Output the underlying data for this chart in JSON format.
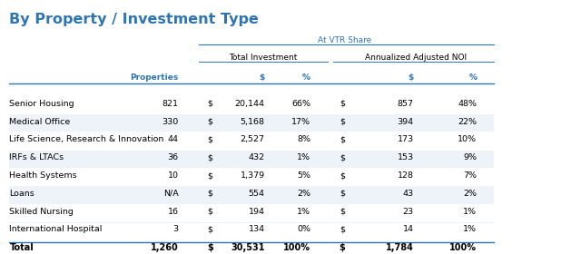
{
  "title": "By Property / Investment Type",
  "title_color": "#2E75B6",
  "at_vtr_label": "At VTR Share",
  "col_group1": "Total Investment",
  "col_group2": "Annualized Adjusted NOI",
  "header_row": [
    "Properties",
    "$",
    "%",
    "$",
    "%"
  ],
  "rows": [
    [
      "Senior Housing",
      "821",
      "$",
      "20,144",
      "66%",
      "$",
      "857",
      "48%"
    ],
    [
      "Medical Office",
      "330",
      "$",
      "5,168",
      "17%",
      "$",
      "394",
      "22%"
    ],
    [
      "Life Science, Research & Innovation",
      "44",
      "$",
      "2,527",
      "8%",
      "$",
      "173",
      "10%"
    ],
    [
      "IRFs & LTACs",
      "36",
      "$",
      "432",
      "1%",
      "$",
      "153",
      "9%"
    ],
    [
      "Health Systems",
      "10",
      "$",
      "1,379",
      "5%",
      "$",
      "128",
      "7%"
    ],
    [
      "Loans",
      "N/A",
      "$",
      "554",
      "2%",
      "$",
      "43",
      "2%"
    ],
    [
      "Skilled Nursing",
      "16",
      "$",
      "194",
      "1%",
      "$",
      "23",
      "1%"
    ],
    [
      "International Hospital",
      "3",
      "$",
      "134",
      "0%",
      "$",
      "14",
      "1%"
    ]
  ],
  "total_row": [
    "Total",
    "1,260",
    "$",
    "30,531",
    "100%",
    "$",
    "1,784",
    "100%"
  ],
  "bg_color": "#FFFFFF",
  "row_alt_color": "#EEF3F9",
  "row_base_color": "#FFFFFF",
  "total_row_color": "#C5D9F1",
  "header_color": "#2E75B6",
  "line_color": "#2E75B6",
  "text_color": "#000000"
}
